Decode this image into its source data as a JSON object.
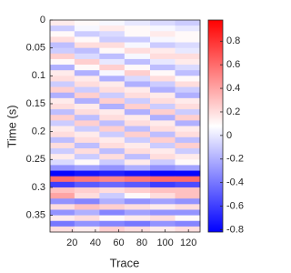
{
  "chart_data": {
    "type": "heatmap",
    "xlabel": "Trace",
    "ylabel": "Time (s)",
    "x": [
      11,
      33,
      54,
      76,
      98,
      119
    ],
    "y": [
      0.005,
      0.015,
      0.025,
      0.035,
      0.045,
      0.055,
      0.065,
      0.075,
      0.085,
      0.095,
      0.105,
      0.115,
      0.125,
      0.135,
      0.145,
      0.155,
      0.165,
      0.175,
      0.185,
      0.195,
      0.205,
      0.215,
      0.225,
      0.235,
      0.245,
      0.255,
      0.265,
      0.275,
      0.285,
      0.295,
      0.305,
      0.315,
      0.325,
      0.335,
      0.345,
      0.355,
      0.365,
      0.375
    ],
    "z": [
      [
        0.15,
        0.1,
        0.05,
        0,
        -0.05,
        -0.1
      ],
      [
        -0.1,
        0.05,
        0.15,
        0.1,
        0.05,
        0
      ],
      [
        0.1,
        -0.1,
        -0.05,
        0.1,
        0.15,
        0.1
      ],
      [
        0.2,
        0.1,
        -0.1,
        -0.1,
        0.05,
        0.1
      ],
      [
        -0.15,
        0.2,
        0.2,
        0.05,
        -0.1,
        -0.05
      ],
      [
        -0.1,
        -0.15,
        0.1,
        0.2,
        0.15,
        0
      ],
      [
        0.25,
        -0.05,
        -0.15,
        0.05,
        0.2,
        0.2
      ],
      [
        0.1,
        0.25,
        0,
        -0.15,
        0,
        0.15
      ],
      [
        -0.2,
        0.1,
        0.25,
        0.1,
        -0.15,
        -0.05
      ],
      [
        0.15,
        -0.2,
        0.05,
        0.25,
        0.1,
        -0.15
      ],
      [
        0.2,
        0.15,
        -0.2,
        -0.05,
        0.2,
        0.1
      ],
      [
        -0.1,
        0.2,
        0.15,
        -0.2,
        -0.1,
        0.2
      ],
      [
        0.25,
        -0.1,
        0.2,
        0.15,
        -0.2,
        -0.1
      ],
      [
        -0.2,
        0.25,
        -0.1,
        0.2,
        0.15,
        -0.2
      ],
      [
        0.15,
        -0.2,
        0.25,
        -0.1,
        0.2,
        0.15
      ],
      [
        0.2,
        0.15,
        -0.2,
        0.25,
        -0.1,
        0.2
      ],
      [
        -0.15,
        0.2,
        0.15,
        -0.2,
        0.25,
        -0.1
      ],
      [
        0.25,
        -0.15,
        0.2,
        0.15,
        -0.2,
        0.25
      ],
      [
        -0.1,
        0.25,
        -0.15,
        0.2,
        0.15,
        -0.2
      ],
      [
        0.15,
        -0.1,
        0.25,
        -0.15,
        0.2,
        0.15
      ],
      [
        0.2,
        0.15,
        -0.1,
        0.25,
        -0.15,
        0.2
      ],
      [
        -0.15,
        0.2,
        0.15,
        -0.1,
        0.25,
        -0.15
      ],
      [
        0.2,
        -0.15,
        0.2,
        0.15,
        -0.1,
        0.25
      ],
      [
        -0.1,
        0.2,
        -0.15,
        0.2,
        0.15,
        -0.1
      ],
      [
        0.15,
        -0.1,
        0.2,
        -0.15,
        0.2,
        0.15
      ],
      [
        -0.05,
        0.1,
        -0.1,
        0.15,
        -0.1,
        0.1
      ],
      [
        -0.3,
        -0.25,
        -0.3,
        -0.2,
        -0.3,
        -0.25
      ],
      [
        -0.8,
        -0.75,
        -0.7,
        -0.75,
        -0.8,
        -0.8
      ],
      [
        0.6,
        0.55,
        0.5,
        0.55,
        0.6,
        0.6
      ],
      [
        -0.6,
        -0.5,
        -0.45,
        -0.5,
        -0.6,
        -0.55
      ],
      [
        0.3,
        0.25,
        0.2,
        0.25,
        0.3,
        0.3
      ],
      [
        0.4,
        0.2,
        -0.1,
        0.1,
        0.2,
        0.3
      ],
      [
        -0.3,
        -0.35,
        -0.2,
        -0.3,
        -0.25,
        -0.3
      ],
      [
        0.2,
        0.3,
        0.25,
        0.2,
        0.15,
        0.2
      ],
      [
        -0.3,
        -0.2,
        -0.35,
        -0.25,
        -0.3,
        -0.3
      ],
      [
        0.15,
        0.2,
        0.1,
        0.15,
        0.2,
        0.1
      ],
      [
        -0.4,
        -0.3,
        -0.35,
        -0.4,
        -0.3,
        -0.35
      ],
      [
        0.2,
        0.15,
        0.25,
        0.2,
        0.15,
        0.2
      ]
    ],
    "xlim": [
      1,
      130
    ],
    "xticks": [
      20,
      40,
      60,
      80,
      100,
      120
    ],
    "ylim": [
      0,
      0.38
    ],
    "yticks": [
      0,
      0.05,
      0.1,
      0.15,
      0.2,
      0.25,
      0.3,
      0.35
    ],
    "y_reversed": true,
    "clim": [
      -0.82,
      0.98
    ],
    "cticks": [
      -0.8,
      -0.6,
      -0.4,
      -0.2,
      0,
      0.2,
      0.4,
      0.6,
      0.8
    ],
    "colormap": [
      "#0000ff",
      "#ffffff",
      "#ff0000"
    ]
  }
}
